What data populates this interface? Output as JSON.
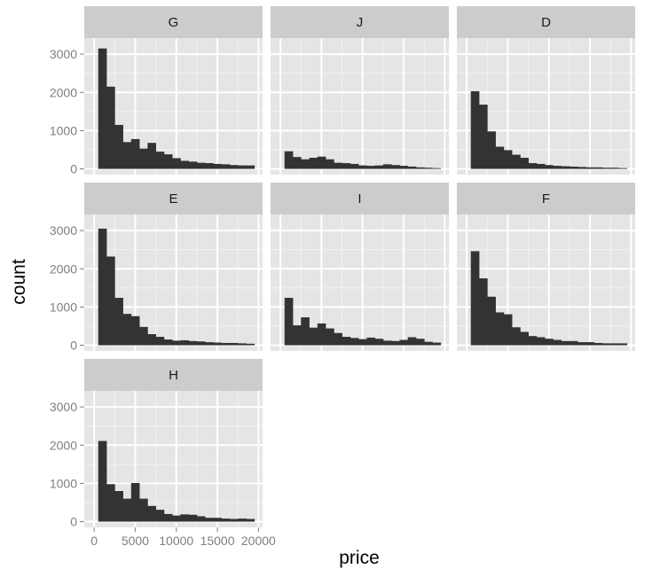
{
  "chart_data": {
    "type": "bar",
    "facet_by": "color",
    "xlabel": "price",
    "ylabel": "count",
    "x_ticks": [
      0,
      5000,
      10000,
      15000,
      20000
    ],
    "y_ticks": [
      0,
      1000,
      2000,
      3000
    ],
    "xlim": [
      -1200,
      20500
    ],
    "ylim": [
      -150,
      3420
    ],
    "bin_width": 1000,
    "bin_starts": [
      500,
      1500,
      2500,
      3500,
      4500,
      5500,
      6500,
      7500,
      8500,
      9500,
      10500,
      11500,
      12500,
      13500,
      14500,
      15500,
      16500,
      17500,
      18500
    ],
    "panels": [
      {
        "facet": "G",
        "values": [
          3150,
          2150,
          1150,
          700,
          780,
          530,
          680,
          450,
          380,
          280,
          210,
          190,
          160,
          150,
          130,
          120,
          100,
          90,
          90
        ]
      },
      {
        "facet": "J",
        "values": [
          460,
          310,
          250,
          290,
          320,
          250,
          160,
          150,
          130,
          90,
          80,
          90,
          120,
          100,
          80,
          60,
          40,
          30,
          20
        ]
      },
      {
        "facet": "D",
        "values": [
          2030,
          1680,
          980,
          580,
          490,
          370,
          290,
          150,
          130,
          100,
          80,
          70,
          60,
          50,
          40,
          40,
          30,
          30,
          20
        ]
      },
      {
        "facet": "E",
        "values": [
          3050,
          2320,
          1240,
          820,
          760,
          480,
          290,
          220,
          150,
          120,
          130,
          110,
          100,
          80,
          70,
          60,
          60,
          50,
          40
        ]
      },
      {
        "facet": "I",
        "values": [
          1240,
          520,
          730,
          460,
          570,
          440,
          320,
          220,
          190,
          160,
          200,
          170,
          120,
          110,
          140,
          210,
          170,
          90,
          70
        ]
      },
      {
        "facet": "F",
        "values": [
          2460,
          1750,
          1270,
          860,
          810,
          470,
          350,
          240,
          210,
          170,
          140,
          110,
          110,
          80,
          80,
          60,
          50,
          50,
          50
        ]
      },
      {
        "facet": "H",
        "values": [
          2110,
          980,
          800,
          600,
          1010,
          600,
          410,
          310,
          200,
          160,
          190,
          180,
          140,
          100,
          100,
          80,
          70,
          80,
          70
        ]
      }
    ],
    "grid": true,
    "legend": "none"
  },
  "colors": {
    "panel_background": "#e5e5e5",
    "strip_background": "#cccccc",
    "bar_fill": "#333333",
    "grid": "#ffffff",
    "tick": "#7f7f7f"
  }
}
